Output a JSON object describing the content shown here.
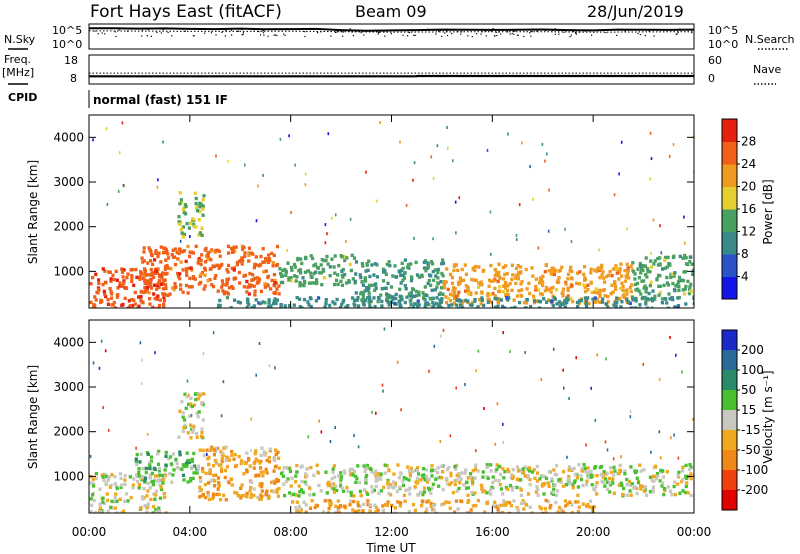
{
  "header": {
    "station": "Fort Hays East (fitACF)",
    "beam": "Beam 09",
    "date": "28/Jun/2019"
  },
  "top_panels": {
    "nsky_label": "N.Sky",
    "nsearch_label": "N.Search",
    "noise_ticks": [
      "10^5",
      "10^0"
    ],
    "freq_label_line1": "Freq.",
    "freq_label_line2": "[MHz]",
    "freq_ticks": [
      "18",
      "8"
    ],
    "nave_label": "Nave",
    "nave_ticks": [
      "60",
      "0"
    ],
    "cpid_label": "CPID",
    "cpid_text": "normal (fast) 151 IF"
  },
  "colorbars": {
    "power": {
      "label": "Power [dB]",
      "ticks": [
        "4",
        "8",
        "12",
        "16",
        "20",
        "24",
        "28"
      ],
      "colors": [
        "#1414e6",
        "#2a52c9",
        "#3a8a8a",
        "#4aa060",
        "#e6d030",
        "#f09a20",
        "#f06018",
        "#e62010"
      ]
    },
    "velocity": {
      "label": "Velocity [m s⁻¹]",
      "ticks": [
        "200",
        "100",
        "50",
        "15",
        "-15",
        "-50",
        "-100",
        "-200"
      ],
      "colors": [
        "#1a2ac8",
        "#2a6a9a",
        "#2a8a6a",
        "#48c030",
        "#c8c8c0",
        "#f0a820",
        "#f08818",
        "#f04010",
        "#e00000"
      ]
    }
  },
  "axes": {
    "ylabel": "Slant Range [km]",
    "xlabel": "Time UT",
    "xticks": [
      "00:00",
      "04:00",
      "08:00",
      "12:00",
      "16:00",
      "20:00",
      "00:00"
    ],
    "yticks": [
      "1000",
      "2000",
      "3000",
      "4000"
    ]
  },
  "chart_data": [
    {
      "type": "line",
      "title": "N.Sky / N.Search",
      "x_range_hours": [
        0,
        24
      ],
      "y_scale": "log",
      "ylim": [
        1,
        100000
      ],
      "series": [
        {
          "name": "N.Sky",
          "x": [
            0,
            1,
            2,
            3,
            4,
            5,
            6,
            7,
            8,
            9,
            10,
            11,
            12,
            13,
            14,
            15,
            16,
            17,
            18,
            19,
            20,
            21,
            22,
            23,
            24
          ],
          "y": [
            30000,
            30000,
            25000,
            28000,
            22000,
            20000,
            25000,
            18000,
            20000,
            22000,
            12000,
            8000,
            10000,
            12000,
            15000,
            14000,
            13000,
            14000,
            16000,
            12000,
            10000,
            15000,
            14000,
            13000,
            15000
          ]
        },
        {
          "name": "N.Search",
          "x": [
            0,
            2,
            4,
            6,
            8,
            10,
            12,
            14,
            16,
            18,
            20,
            22,
            24
          ],
          "y": [
            8000,
            7000,
            6000,
            6000,
            6500,
            5000,
            4000,
            4500,
            5000,
            5000,
            4000,
            4500,
            5000
          ]
        }
      ]
    },
    {
      "type": "line",
      "title": "Freq. / Nave",
      "x_range_hours": [
        0,
        24
      ],
      "series": [
        {
          "name": "Freq.",
          "ylim": [
            8,
            18
          ],
          "x": [
            0,
            13,
            13.01,
            24
          ],
          "y": [
            10.5,
            10.5,
            10.6,
            10.6
          ]
        },
        {
          "name": "Nave",
          "ylim": [
            0,
            60
          ],
          "x": [
            0,
            24
          ],
          "y": [
            22,
            22
          ]
        }
      ]
    },
    {
      "type": "heatmap",
      "title": "Power [dB]",
      "x_range_hours": [
        0,
        24
      ],
      "ylim_km": [
        180,
        4500
      ],
      "colorbar_range": [
        0,
        32
      ],
      "regions": [
        {
          "t0": 0.0,
          "t1": 3.0,
          "r0": 200,
          "r1": 1100,
          "value": 27
        },
        {
          "t0": 2.0,
          "t1": 7.5,
          "r0": 500,
          "r1": 1600,
          "value": 26
        },
        {
          "t0": 7.5,
          "t1": 10.5,
          "r0": 700,
          "r1": 1400,
          "value": 14
        },
        {
          "t0": 10.5,
          "t1": 14.0,
          "r0": 250,
          "r1": 1300,
          "value": 12
        },
        {
          "t0": 14.0,
          "t1": 21.5,
          "r0": 300,
          "r1": 1200,
          "value": 22
        },
        {
          "t0": 21.5,
          "t1": 24.0,
          "r0": 400,
          "r1": 1400,
          "value": 14
        },
        {
          "t0": 3.5,
          "t1": 4.5,
          "r0": 1800,
          "r1": 2800,
          "value": 16
        },
        {
          "t0": 5.0,
          "t1": 24.0,
          "r0": 200,
          "r1": 450,
          "value": 10
        }
      ]
    },
    {
      "type": "heatmap",
      "title": "Velocity [m s-1]",
      "x_range_hours": [
        0,
        24
      ],
      "ylim_km": [
        180,
        4500
      ],
      "colorbar_range": [
        -250,
        250
      ],
      "regions": [
        {
          "t0": 0.0,
          "t1": 3.0,
          "r0": 200,
          "r1": 1100,
          "value": 0
        },
        {
          "t0": 1.8,
          "t1": 4.3,
          "r0": 900,
          "r1": 1600,
          "value": 30
        },
        {
          "t0": 4.3,
          "t1": 7.5,
          "r0": 500,
          "r1": 1700,
          "value": -40
        },
        {
          "t0": 7.5,
          "t1": 24.0,
          "r0": 600,
          "r1": 1300,
          "value": 0
        },
        {
          "t0": 8.0,
          "t1": 20.0,
          "r0": 200,
          "r1": 500,
          "value": -35
        },
        {
          "t0": 3.5,
          "t1": 4.5,
          "r0": 1900,
          "r1": 2900,
          "value": 0
        }
      ]
    }
  ]
}
